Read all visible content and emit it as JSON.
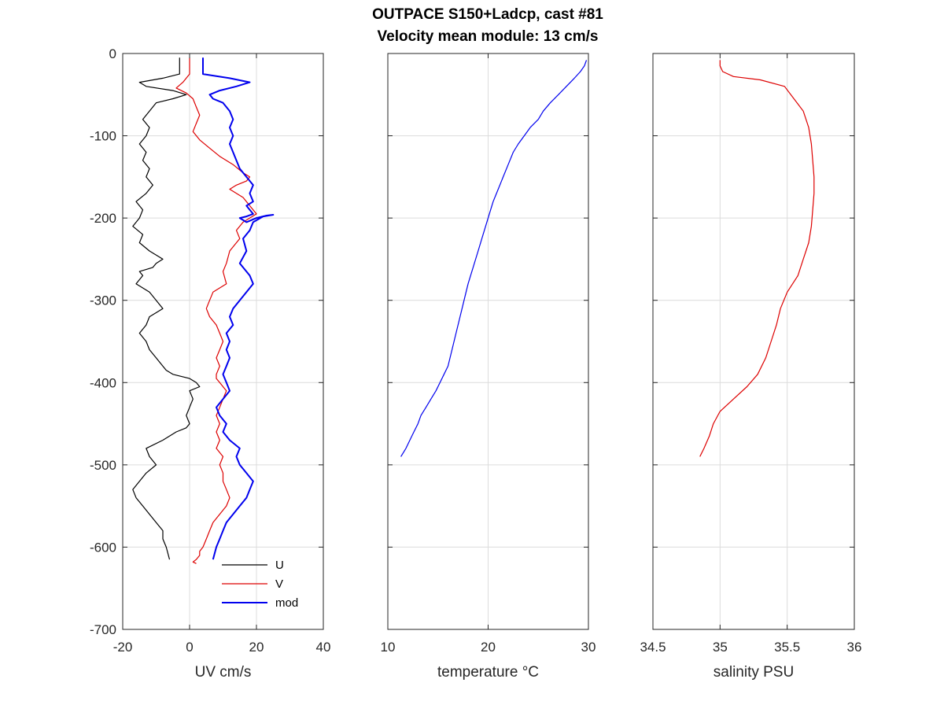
{
  "title": {
    "line1": "OUTPACE S150+Ladcp, cast #81",
    "line2": "Velocity mean module:  13 cm/s"
  },
  "chart_data": [
    {
      "type": "line",
      "id": "uv",
      "xlabel": "UV cm/s",
      "ylabel": "",
      "xlim": [
        -20,
        40
      ],
      "ylim": [
        -700,
        0
      ],
      "xticks": [
        -20,
        0,
        20,
        40
      ],
      "yticks": [
        0,
        -100,
        -200,
        -300,
        -400,
        -500,
        -600,
        -700
      ],
      "grid": true,
      "legend": {
        "placement": "bottom-right",
        "entries": [
          "U",
          "V",
          "mod"
        ]
      },
      "series": [
        {
          "name": "U",
          "color": "#000000",
          "x": [
            -3,
            -3,
            -3,
            -8,
            -15,
            -13,
            -5,
            -1,
            -5,
            -10,
            -12,
            -14,
            -12,
            -13,
            -15,
            -13,
            -14,
            -12,
            -13,
            -11,
            -13,
            -16,
            -14,
            -15,
            -17,
            -14,
            -15,
            -12,
            -8,
            -10,
            -11,
            -15,
            -14,
            -16,
            -12,
            -10,
            -8,
            -12,
            -13,
            -15,
            -13,
            -12,
            -10,
            -8,
            -7,
            -5,
            0,
            2,
            3,
            0,
            1,
            0,
            -1,
            0,
            -1,
            -4,
            -8,
            -13,
            -12,
            -10,
            -13,
            -15,
            -17,
            -16,
            -14,
            -12,
            -10,
            -8,
            -8,
            -7,
            -6
          ],
          "y": [
            -5,
            -15,
            -25,
            -30,
            -35,
            -40,
            -45,
            -50,
            -55,
            -60,
            -70,
            -80,
            -90,
            -100,
            -110,
            -120,
            -130,
            -140,
            -150,
            -160,
            -170,
            -180,
            -190,
            -200,
            -210,
            -220,
            -230,
            -240,
            -250,
            -255,
            -260,
            -265,
            -270,
            -280,
            -290,
            -300,
            -310,
            -320,
            -330,
            -340,
            -350,
            -360,
            -370,
            -380,
            -385,
            -390,
            -395,
            -400,
            -405,
            -410,
            -420,
            -430,
            -440,
            -450,
            -455,
            -460,
            -470,
            -480,
            -490,
            -500,
            -510,
            -520,
            -530,
            -540,
            -550,
            -560,
            -570,
            -580,
            -590,
            -600,
            -615
          ]
        },
        {
          "name": "V",
          "color": "#dd0000",
          "x": [
            0,
            0,
            0,
            -2,
            -4,
            -1,
            1,
            2,
            3,
            2,
            1,
            3,
            6,
            9,
            13,
            16,
            18,
            17,
            14,
            12,
            14,
            16,
            18,
            20,
            16,
            14,
            15,
            12,
            11,
            10,
            11,
            7,
            6,
            5,
            6,
            8,
            9,
            10,
            9,
            8,
            9,
            8,
            8,
            9,
            10,
            11,
            10,
            9,
            8,
            9,
            8,
            9,
            8,
            10,
            9,
            10,
            10,
            11,
            12,
            11,
            9,
            7,
            6,
            5,
            4,
            3,
            3,
            2,
            1,
            2
          ],
          "y": [
            -5,
            -15,
            -25,
            -35,
            -42,
            -48,
            -55,
            -65,
            -75,
            -85,
            -95,
            -105,
            -115,
            -125,
            -135,
            -145,
            -150,
            -155,
            -160,
            -165,
            -170,
            -175,
            -185,
            -195,
            -205,
            -215,
            -225,
            -240,
            -255,
            -265,
            -280,
            -290,
            -300,
            -310,
            -320,
            -330,
            -340,
            -350,
            -360,
            -370,
            -380,
            -390,
            -395,
            -400,
            -405,
            -410,
            -420,
            -430,
            -440,
            -450,
            -460,
            -470,
            -480,
            -490,
            -500,
            -510,
            -520,
            -530,
            -540,
            -550,
            -560,
            -570,
            -580,
            -590,
            -600,
            -605,
            -610,
            -615,
            -618,
            -620
          ]
        },
        {
          "name": "mod",
          "color": "#0000ee",
          "x": [
            4,
            4,
            4,
            12,
            18,
            14,
            9,
            6,
            7,
            10,
            12,
            13,
            12,
            13,
            12,
            13,
            14,
            15,
            17,
            19,
            18,
            19,
            17,
            18,
            19,
            17,
            15,
            17,
            20,
            23,
            25,
            22,
            19,
            18,
            16,
            17,
            15,
            18,
            19,
            17,
            15,
            13,
            12,
            13,
            11,
            12,
            11,
            12,
            11,
            10,
            11,
            12,
            10,
            8,
            9,
            11,
            10,
            12,
            15,
            14,
            15,
            17,
            19,
            18,
            17,
            15,
            13,
            11,
            10,
            9,
            8,
            7
          ],
          "y": [
            -5,
            -15,
            -25,
            -30,
            -35,
            -40,
            -45,
            -50,
            -55,
            -60,
            -70,
            -80,
            -90,
            -100,
            -110,
            -120,
            -130,
            -140,
            -150,
            -160,
            -170,
            -180,
            -185,
            -190,
            -195,
            -198,
            -200,
            -205,
            -200,
            -197,
            -196,
            -198,
            -205,
            -215,
            -225,
            -240,
            -255,
            -270,
            -280,
            -290,
            -300,
            -310,
            -320,
            -330,
            -340,
            -350,
            -360,
            -370,
            -380,
            -390,
            -400,
            -410,
            -420,
            -430,
            -440,
            -450,
            -460,
            -470,
            -480,
            -490,
            -500,
            -510,
            -520,
            -530,
            -540,
            -550,
            -560,
            -570,
            -580,
            -590,
            -600,
            -615
          ]
        }
      ]
    },
    {
      "type": "line",
      "id": "temperature",
      "xlabel": "temperature °C",
      "ylabel": "",
      "xlim": [
        10,
        30
      ],
      "ylim": [
        -700,
        0
      ],
      "xticks": [
        10,
        20,
        30
      ],
      "grid": true,
      "series": [
        {
          "name": "",
          "color": "#0000ee",
          "x": [
            29.8,
            29.6,
            29.2,
            28.6,
            27.8,
            27.0,
            26.2,
            25.5,
            25.0,
            24.2,
            23.6,
            23.0,
            22.5,
            22.0,
            21.5,
            21.0,
            20.5,
            20.0,
            19.5,
            19.0,
            18.5,
            18.0,
            17.6,
            17.2,
            16.8,
            16.4,
            16.0,
            15.6,
            15.2,
            14.8,
            14.3,
            13.8,
            13.3,
            13.0,
            12.6,
            12.2,
            11.8,
            11.3
          ],
          "y": [
            -8,
            -15,
            -22,
            -30,
            -40,
            -50,
            -60,
            -70,
            -80,
            -90,
            -100,
            -110,
            -120,
            -135,
            -150,
            -165,
            -180,
            -200,
            -220,
            -240,
            -260,
            -280,
            -300,
            -320,
            -340,
            -360,
            -380,
            -390,
            -400,
            -410,
            -420,
            -430,
            -440,
            -450,
            -460,
            -470,
            -480,
            -490
          ]
        }
      ]
    },
    {
      "type": "line",
      "id": "salinity",
      "xlabel": "salinity PSU",
      "ylabel": "",
      "xlim": [
        34.5,
        36
      ],
      "ylim": [
        -700,
        0
      ],
      "xticks": [
        34.5,
        35,
        35.5,
        36
      ],
      "grid": true,
      "series": [
        {
          "name": "",
          "color": "#dd0000",
          "x": [
            35.0,
            35.0,
            35.02,
            35.1,
            35.3,
            35.48,
            35.55,
            35.62,
            35.66,
            35.68,
            35.69,
            35.7,
            35.7,
            35.69,
            35.68,
            35.66,
            35.62,
            35.58,
            35.5,
            35.45,
            35.42,
            35.38,
            35.34,
            35.28,
            35.2,
            35.1,
            35.0,
            34.95,
            34.92,
            34.88,
            34.85
          ],
          "y": [
            -8,
            -15,
            -22,
            -28,
            -32,
            -40,
            -55,
            -70,
            -90,
            -110,
            -130,
            -150,
            -170,
            -190,
            -210,
            -230,
            -250,
            -270,
            -290,
            -310,
            -330,
            -350,
            -370,
            -390,
            -405,
            -420,
            -435,
            -450,
            -465,
            -480,
            -490
          ]
        }
      ]
    }
  ]
}
